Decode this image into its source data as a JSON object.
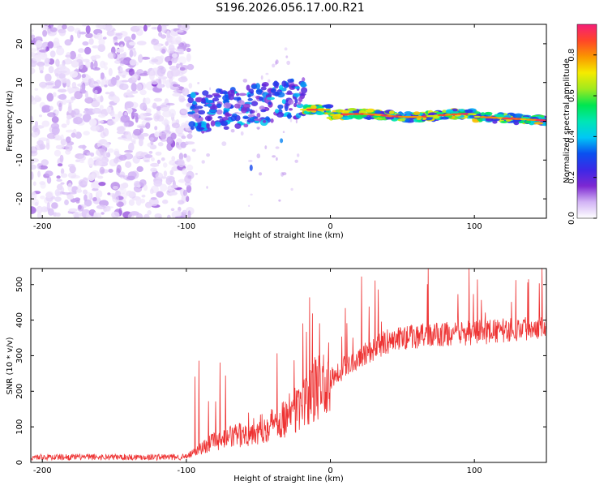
{
  "title": "S196.2026.056.17.00.R21",
  "chart_data": [
    {
      "type": "heatmap",
      "xlabel": "Height of straight line (km)",
      "ylabel": "Frequency (Hz)",
      "xlim": [
        -208,
        150
      ],
      "ylim": [
        -25,
        25
      ],
      "xticks": [
        -200,
        -100,
        0,
        100
      ],
      "yticks": [
        -20,
        -10,
        0,
        10,
        20
      ],
      "colorbar": {
        "label": "Normalized spectral amplitude",
        "range": [
          0,
          0.95
        ],
        "ticks": [
          0,
          0.2,
          0.4,
          0.6,
          0.8
        ],
        "tick_labels": [
          "0.0",
          "0.2",
          "0.4",
          "0.6",
          "0.8"
        ],
        "colors": [
          "#ffffff",
          "#d2b4f5",
          "#7d28d2",
          "#3c28e6",
          "#0a50f0",
          "#00c8f5",
          "#00e6b4",
          "#00e650",
          "#a0ea1e",
          "#f5eb00",
          "#fa9600",
          "#ff4628",
          "#f51e78"
        ]
      },
      "regions": [
        {
          "name": "noise",
          "x_range": [
            -208,
            -97
          ],
          "freq_range": [
            -25,
            25
          ],
          "amplitude": 0.15
        },
        {
          "name": "transition",
          "x_range": [
            -97,
            -18
          ],
          "freq_range": [
            -4,
            11
          ],
          "amplitude": 0.35
        },
        {
          "name": "signal",
          "x_range": [
            -18,
            150
          ],
          "center_freq": [
            3,
            1.5,
            1.5,
            0
          ],
          "amplitude": 0.95
        }
      ]
    },
    {
      "type": "line",
      "xlabel": "Height of straight line (km)",
      "ylabel": "SNR (10 * v/v)",
      "xlim": [
        -208,
        150
      ],
      "ylim": [
        0,
        545
      ],
      "xticks": [
        -200,
        -100,
        0,
        100
      ],
      "yticks": [
        0,
        100,
        200,
        300,
        400,
        500
      ],
      "color": "#ee3333",
      "series": [
        {
          "name": "SNR",
          "x": [
            -208,
            -100,
            -90,
            -80,
            -70,
            -60,
            -50,
            -40,
            -30,
            -20,
            -10,
            0,
            10,
            20,
            30,
            40,
            50,
            60,
            80,
            100,
            120,
            150
          ],
          "y": [
            15,
            15,
            40,
            60,
            70,
            80,
            90,
            110,
            130,
            160,
            200,
            240,
            270,
            300,
            320,
            340,
            350,
            355,
            360,
            365,
            370,
            385
          ]
        }
      ]
    }
  ]
}
